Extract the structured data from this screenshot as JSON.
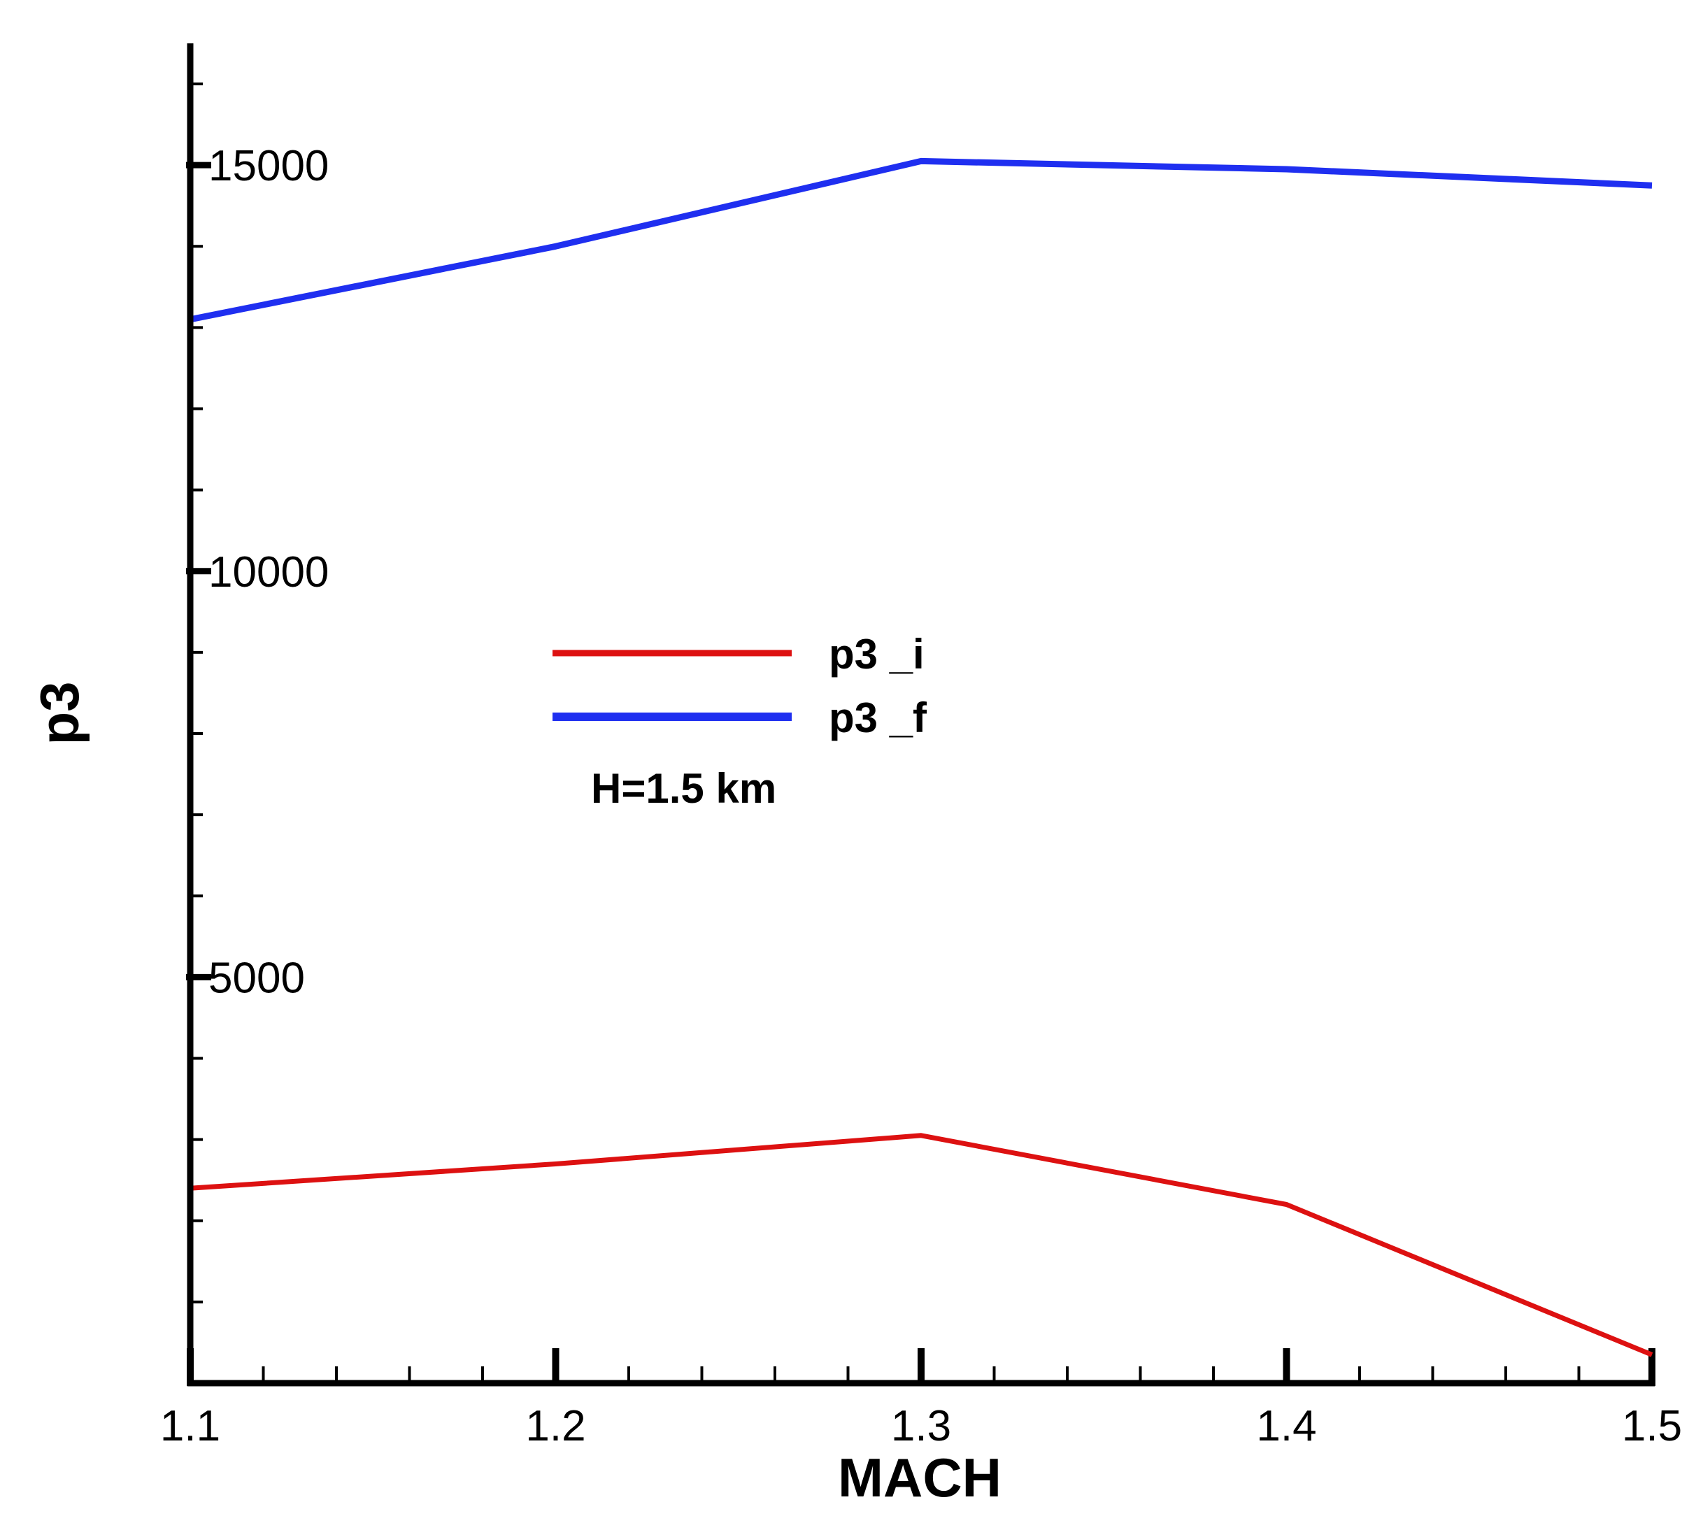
{
  "chart_data": {
    "type": "line",
    "title": "",
    "xlabel": "MACH",
    "ylabel": "p3",
    "xlim": [
      1.1,
      1.5
    ],
    "ylim": [
      0,
      16500
    ],
    "x_major_ticks": [
      1.1,
      1.2,
      1.3,
      1.4,
      1.5
    ],
    "x_tick_labels": [
      "1.1",
      "1.2",
      "1.3",
      "1.4",
      "1.5"
    ],
    "x_minor_step": 0.02,
    "y_major_ticks": [
      5000,
      10000,
      15000
    ],
    "y_tick_labels": [
      "5000",
      "10000",
      "15000"
    ],
    "y_minor_step": 1000,
    "grid": false,
    "legend_position": "center",
    "x": [
      1.1,
      1.2,
      1.3,
      1.4,
      1.5
    ],
    "series": [
      {
        "name": "p3 _i",
        "color": "#dd1111",
        "values": [
          2400,
          2700,
          3050,
          2200,
          350
        ]
      },
      {
        "name": "p3 _f",
        "color": "#1f2ff0",
        "values": [
          13100,
          14000,
          15050,
          14950,
          14750
        ]
      }
    ],
    "annotations": [
      {
        "text": "H=1.5 km",
        "position": "below-legend"
      }
    ]
  }
}
